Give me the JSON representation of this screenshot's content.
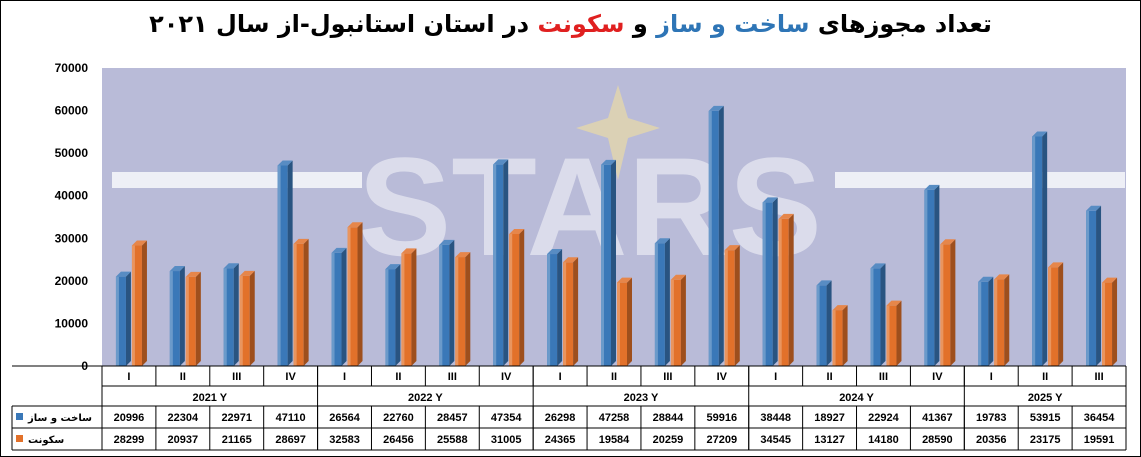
{
  "title": {
    "part1": "تعداد مجوزهای",
    "part2": "ساخت و ساز",
    "part3": "و",
    "part4": "سکونت",
    "part5": "در استان استانبول-از سال ۲۰۲۱"
  },
  "watermark": "STARS",
  "colors": {
    "construction": "#3a78b8",
    "occupancy": "#e2712a",
    "plot_bg": "#b9bbd8"
  },
  "chart_data": {
    "type": "bar",
    "ylim": [
      0,
      70000
    ],
    "yticks": [
      "0",
      "10000",
      "20000",
      "30000",
      "40000",
      "50000",
      "60000",
      "70000"
    ],
    "groups": [
      {
        "label": "2021 Y",
        "quarters": [
          "I",
          "II",
          "III",
          "IV"
        ]
      },
      {
        "label": "2022 Y",
        "quarters": [
          "I",
          "II",
          "III",
          "IV"
        ]
      },
      {
        "label": "2023 Y",
        "quarters": [
          "I",
          "II",
          "III",
          "IV"
        ]
      },
      {
        "label": "2024 Y",
        "quarters": [
          "I",
          "II",
          "III",
          "IV"
        ]
      },
      {
        "label": "2025 Y",
        "quarters": [
          "I",
          "II",
          "III"
        ]
      }
    ],
    "series": [
      {
        "name": "ساخت و ساز",
        "values": [
          20996,
          22304,
          22971,
          47110,
          26564,
          22760,
          28457,
          47354,
          26298,
          47258,
          28844,
          59916,
          38448,
          18927,
          22924,
          41367,
          19783,
          53915,
          36454
        ]
      },
      {
        "name": "سکونت",
        "values": [
          28299,
          20937,
          21165,
          28697,
          32583,
          26456,
          25588,
          31005,
          24365,
          19584,
          20259,
          27209,
          34545,
          13127,
          14180,
          28590,
          20356,
          23175,
          19591
        ]
      }
    ]
  }
}
